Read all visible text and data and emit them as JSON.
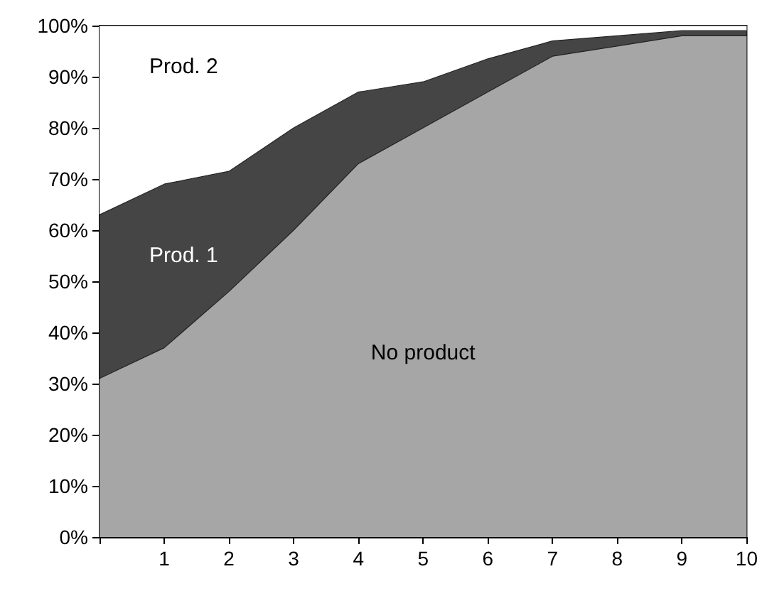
{
  "chart_data": {
    "type": "area",
    "stacked": true,
    "x": [
      0,
      1,
      2,
      3,
      4,
      5,
      6,
      7,
      8,
      9,
      10
    ],
    "series": [
      {
        "name": "No product",
        "color": "#a6a6a6",
        "values": [
          31,
          37,
          48,
          60,
          73,
          80,
          87,
          94,
          96,
          98,
          98
        ]
      },
      {
        "name": "Prod. 1",
        "color": "#454545",
        "values": [
          32,
          32,
          23.5,
          20,
          14,
          9,
          6.5,
          3,
          2,
          1,
          1
        ]
      },
      {
        "name": "Prod. 2",
        "color": "#ffffff",
        "values": [
          37,
          31,
          28.5,
          20,
          13,
          11,
          6.5,
          3,
          2,
          1,
          1
        ]
      }
    ],
    "xlim": [
      0,
      10
    ],
    "xticks": [
      {
        "value": 0,
        "label": null
      },
      1,
      2,
      3,
      4,
      5,
      6,
      7,
      8,
      9,
      10
    ],
    "ylim": [
      0,
      100
    ],
    "yticks": [
      {
        "value": 0,
        "label": "0%"
      },
      {
        "value": 10,
        "label": "10%"
      },
      {
        "value": 20,
        "label": "20%"
      },
      {
        "value": 30,
        "label": "30%"
      },
      {
        "value": 40,
        "label": "40%"
      },
      {
        "value": 50,
        "label": "50%"
      },
      {
        "value": 60,
        "label": "60%"
      },
      {
        "value": 70,
        "label": "70%"
      },
      {
        "value": 80,
        "label": "80%"
      },
      {
        "value": 90,
        "label": "90%"
      },
      {
        "value": 100,
        "label": "100%"
      }
    ],
    "grid": false,
    "legend": false
  }
}
